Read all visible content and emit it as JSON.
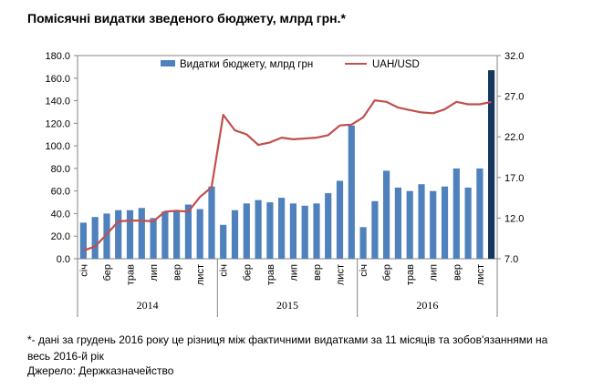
{
  "title": "Помісячні видатки зведеного бюджету, млрд грн.*",
  "footnote": "*- дані за грудень 2016 року це різниця між фактичними видатками за 11 місяців та зобов'язаннями на весь 2016-й рік",
  "source": "Джерело: Держказначейство",
  "chart_data": {
    "type": "bar",
    "title": "Помісячні видатки зведеного бюджету, млрд грн.*",
    "legend_position": "top",
    "grid": false,
    "month_labels": [
      "січ",
      "",
      "бер",
      "",
      "трав",
      "",
      "лип",
      "",
      "вер",
      "",
      "лист",
      ""
    ],
    "years": [
      "2014",
      "2015",
      "2016"
    ],
    "ylim_left": [
      0,
      180
    ],
    "yticks_left": [
      "0.0",
      "20.0",
      "40.0",
      "60.0",
      "80.0",
      "100.0",
      "120.0",
      "140.0",
      "160.0",
      "180.0"
    ],
    "ylim_right": [
      7,
      32
    ],
    "yticks_right": [
      "7.0",
      "12.0",
      "17.0",
      "22.0",
      "27.0",
      "32.0"
    ],
    "series": [
      {
        "name": "Видатки бюджету, млрд грн",
        "type": "bar",
        "axis": "left",
        "color": "#4f81bd",
        "highlight_color": "#17365d",
        "values": [
          32,
          37,
          40,
          43,
          43,
          45,
          36,
          42,
          42,
          48,
          44,
          64,
          30,
          43,
          49,
          52,
          50,
          54,
          49,
          47,
          49,
          58,
          69,
          118,
          28,
          51,
          78,
          63,
          60,
          66,
          60,
          64,
          80,
          63,
          80,
          167
        ]
      },
      {
        "name": "UAH/USD",
        "type": "line",
        "axis": "right",
        "color": "#c0504d",
        "values": [
          8.0,
          8.5,
          10.0,
          11.6,
          11.7,
          11.7,
          11.6,
          12.8,
          12.9,
          12.8,
          14.6,
          15.8,
          24.7,
          22.8,
          22.3,
          21.0,
          21.3,
          21.9,
          21.7,
          21.8,
          21.9,
          22.2,
          23.4,
          23.5,
          24.4,
          26.5,
          26.3,
          25.6,
          25.3,
          25.0,
          24.9,
          25.4,
          26.3,
          26.0,
          26.0,
          26.3
        ]
      }
    ]
  }
}
